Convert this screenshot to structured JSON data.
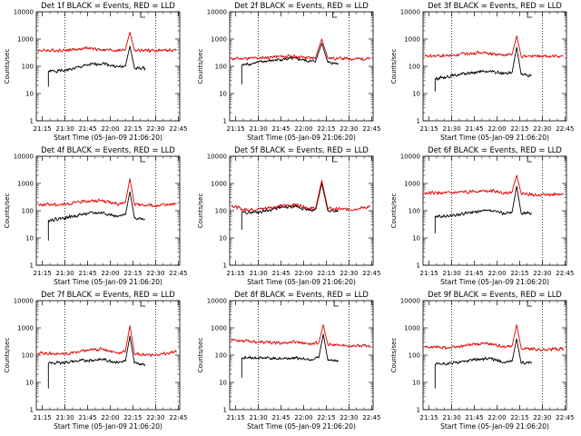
{
  "figure": {
    "x_ticks": [
      "21:15",
      "21:30",
      "21:45",
      "22:00",
      "22:15",
      "22:30",
      "22:45"
    ],
    "y_ticks": [
      "1",
      "10",
      "100",
      "1000",
      "10000"
    ],
    "ylabel": "Counts/sec",
    "xlabel": "Start Time (05-Jan-09 21:06:20)",
    "colors": {
      "events": "#000000",
      "lld": "#e00000",
      "axis": "#000000"
    }
  },
  "chart_data": [
    {
      "type": "line",
      "title": "Det 1f BLACK = Events, RED = LLD",
      "xlabel": "Start Time (05-Jan-09 21:06:20)",
      "ylabel": "Counts/sec",
      "y_scale": "log",
      "ylim": [
        1,
        10000
      ],
      "xlim": [
        "21:11",
        "22:46"
      ],
      "vertical_markers": [
        "21:30",
        "22:30"
      ],
      "peak_time": "22:13",
      "series": [
        {
          "key": "events",
          "color": "#000000",
          "points": [
            [
              "21:19",
              18
            ],
            [
              "21:19",
              65
            ],
            [
              "21:30",
              70
            ],
            [
              "21:45",
              110
            ],
            [
              "21:55",
              130
            ],
            [
              "22:05",
              95
            ],
            [
              "22:10",
              100
            ],
            [
              "22:13",
              550
            ],
            [
              "22:16",
              85
            ],
            [
              "22:23",
              85
            ]
          ]
        },
        {
          "key": "lld",
          "color": "#e00000",
          "points": [
            [
              "21:12",
              380
            ],
            [
              "21:30",
              390
            ],
            [
              "21:45",
              460
            ],
            [
              "21:55",
              410
            ],
            [
              "22:05",
              380
            ],
            [
              "22:10",
              420
            ],
            [
              "22:13",
              1800
            ],
            [
              "22:16",
              380
            ],
            [
              "22:30",
              380
            ],
            [
              "22:44",
              390
            ]
          ]
        }
      ]
    },
    {
      "type": "line",
      "title": "Det 2f BLACK = Events, RED = LLD",
      "xlabel": "Start Time (05-Jan-09 21:06:20)",
      "ylabel": "Counts/sec",
      "y_scale": "log",
      "ylim": [
        1,
        10000
      ],
      "xlim": [
        "21:11",
        "22:46"
      ],
      "vertical_markers": [
        "21:30",
        "22:30"
      ],
      "peak_time": "22:12",
      "series": [
        {
          "key": "events",
          "color": "#000000",
          "points": [
            [
              "21:19",
              22
            ],
            [
              "21:19",
              110
            ],
            [
              "21:30",
              140
            ],
            [
              "21:45",
              180
            ],
            [
              "21:55",
              190
            ],
            [
              "22:05",
              150
            ],
            [
              "22:08",
              160
            ],
            [
              "22:12",
              700
            ],
            [
              "22:16",
              140
            ],
            [
              "22:23",
              130
            ]
          ]
        },
        {
          "key": "lld",
          "color": "#e00000",
          "points": [
            [
              "21:12",
              190
            ],
            [
              "21:30",
              200
            ],
            [
              "21:45",
              230
            ],
            [
              "21:55",
              230
            ],
            [
              "22:05",
              200
            ],
            [
              "22:08",
              220
            ],
            [
              "22:12",
              1000
            ],
            [
              "22:16",
              200
            ],
            [
              "22:30",
              190
            ],
            [
              "22:44",
              190
            ]
          ]
        }
      ]
    },
    {
      "type": "line",
      "title": "Det 3f BLACK = Events, RED = LLD",
      "xlabel": "Start Time (05-Jan-09 21:06:20)",
      "ylabel": "Counts/sec",
      "y_scale": "log",
      "ylim": [
        1,
        10000
      ],
      "xlim": [
        "21:11",
        "22:46"
      ],
      "vertical_markers": [
        "21:30",
        "22:30"
      ],
      "peak_time": "22:13",
      "series": [
        {
          "key": "events",
          "color": "#000000",
          "points": [
            [
              "21:19",
              12
            ],
            [
              "21:19",
              35
            ],
            [
              "21:30",
              45
            ],
            [
              "21:45",
              60
            ],
            [
              "21:55",
              65
            ],
            [
              "22:05",
              55
            ],
            [
              "22:10",
              60
            ],
            [
              "22:13",
              500
            ],
            [
              "22:16",
              50
            ],
            [
              "22:23",
              45
            ]
          ]
        },
        {
          "key": "lld",
          "color": "#e00000",
          "points": [
            [
              "21:12",
              230
            ],
            [
              "21:30",
              250
            ],
            [
              "21:45",
              320
            ],
            [
              "21:55",
              300
            ],
            [
              "22:05",
              250
            ],
            [
              "22:10",
              280
            ],
            [
              "22:13",
              1300
            ],
            [
              "22:16",
              240
            ],
            [
              "22:30",
              230
            ],
            [
              "22:44",
              230
            ]
          ]
        }
      ]
    },
    {
      "type": "line",
      "title": "Det 4f BLACK = Events, RED = LLD",
      "xlabel": "Start Time (05-Jan-09 21:06:20)",
      "ylabel": "Counts/sec",
      "y_scale": "log",
      "ylim": [
        1,
        10000
      ],
      "xlim": [
        "21:11",
        "22:46"
      ],
      "vertical_markers": [
        "21:30",
        "22:30"
      ],
      "peak_time": "22:13",
      "series": [
        {
          "key": "events",
          "color": "#000000",
          "points": [
            [
              "21:19",
              8
            ],
            [
              "21:19",
              45
            ],
            [
              "21:30",
              55
            ],
            [
              "21:45",
              80
            ],
            [
              "21:55",
              85
            ],
            [
              "22:05",
              60
            ],
            [
              "22:10",
              70
            ],
            [
              "22:13",
              500
            ],
            [
              "22:16",
              55
            ],
            [
              "22:23",
              50
            ]
          ]
        },
        {
          "key": "lld",
          "color": "#e00000",
          "points": [
            [
              "21:12",
              170
            ],
            [
              "21:30",
              170
            ],
            [
              "21:45",
              230
            ],
            [
              "21:55",
              240
            ],
            [
              "22:05",
              170
            ],
            [
              "22:10",
              200
            ],
            [
              "22:13",
              1500
            ],
            [
              "22:16",
              170
            ],
            [
              "22:30",
              150
            ],
            [
              "22:44",
              180
            ]
          ]
        }
      ]
    },
    {
      "type": "line",
      "title": "Det 5f BLACK = Events, RED = LLD",
      "xlabel": "Start Time (05-Jan-09 21:06:20)",
      "ylabel": "Counts/sec",
      "y_scale": "log",
      "ylim": [
        1,
        10000
      ],
      "xlim": [
        "21:11",
        "22:46"
      ],
      "vertical_markers": [
        "21:30",
        "22:30"
      ],
      "peak_time": "22:12",
      "series": [
        {
          "key": "events",
          "color": "#000000",
          "points": [
            [
              "21:19",
              20
            ],
            [
              "21:19",
              85
            ],
            [
              "21:30",
              90
            ],
            [
              "21:45",
              130
            ],
            [
              "21:55",
              140
            ],
            [
              "22:05",
              100
            ],
            [
              "22:08",
              110
            ],
            [
              "22:12",
              1000
            ],
            [
              "22:16",
              100
            ],
            [
              "22:23",
              100
            ]
          ]
        },
        {
          "key": "lld",
          "color": "#e00000",
          "points": [
            [
              "21:12",
              160
            ],
            [
              "21:20",
              110
            ],
            [
              "21:30",
              115
            ],
            [
              "21:45",
              150
            ],
            [
              "21:55",
              170
            ],
            [
              "22:05",
              120
            ],
            [
              "22:08",
              130
            ],
            [
              "22:12",
              1300
            ],
            [
              "22:16",
              120
            ],
            [
              "22:30",
              110
            ],
            [
              "22:44",
              140
            ]
          ]
        }
      ]
    },
    {
      "type": "line",
      "title": "Det 6f BLACK = Events, RED = LLD",
      "xlabel": "Start Time (05-Jan-09 21:06:20)",
      "ylabel": "Counts/sec",
      "y_scale": "log",
      "ylim": [
        1,
        10000
      ],
      "xlim": [
        "21:11",
        "22:46"
      ],
      "vertical_markers": [
        "21:30",
        "22:30"
      ],
      "peak_time": "22:13",
      "series": [
        {
          "key": "events",
          "color": "#000000",
          "points": [
            [
              "21:19",
              15
            ],
            [
              "21:19",
              60
            ],
            [
              "21:30",
              65
            ],
            [
              "21:45",
              90
            ],
            [
              "21:55",
              100
            ],
            [
              "22:05",
              80
            ],
            [
              "22:10",
              90
            ],
            [
              "22:13",
              800
            ],
            [
              "22:16",
              80
            ],
            [
              "22:23",
              80
            ]
          ]
        },
        {
          "key": "lld",
          "color": "#e00000",
          "points": [
            [
              "21:12",
              450
            ],
            [
              "21:30",
              440
            ],
            [
              "21:45",
              520
            ],
            [
              "21:55",
              550
            ],
            [
              "22:05",
              450
            ],
            [
              "22:10",
              500
            ],
            [
              "22:13",
              2000
            ],
            [
              "22:16",
              420
            ],
            [
              "22:30",
              380
            ],
            [
              "22:44",
              400
            ]
          ]
        }
      ]
    },
    {
      "type": "line",
      "title": "Det 7f BLACK = Events, RED = LLD",
      "xlabel": "Start Time (05-Jan-09 21:06:20)",
      "ylabel": "Counts/sec",
      "y_scale": "log",
      "ylim": [
        1,
        10000
      ],
      "xlim": [
        "21:11",
        "22:46"
      ],
      "vertical_markers": [
        "21:30",
        "22:30"
      ],
      "peak_time": "22:13",
      "series": [
        {
          "key": "events",
          "color": "#000000",
          "points": [
            [
              "21:19",
              6
            ],
            [
              "21:19",
              50
            ],
            [
              "21:30",
              55
            ],
            [
              "21:45",
              65
            ],
            [
              "21:55",
              70
            ],
            [
              "22:05",
              55
            ],
            [
              "22:10",
              60
            ],
            [
              "22:13",
              500
            ],
            [
              "22:16",
              50
            ],
            [
              "22:23",
              45
            ]
          ]
        },
        {
          "key": "lld",
          "color": "#e00000",
          "points": [
            [
              "21:12",
              120
            ],
            [
              "21:30",
              110
            ],
            [
              "21:45",
              150
            ],
            [
              "21:55",
              170
            ],
            [
              "22:05",
              120
            ],
            [
              "22:10",
              140
            ],
            [
              "22:13",
              1200
            ],
            [
              "22:16",
              110
            ],
            [
              "22:30",
              100
            ],
            [
              "22:44",
              130
            ]
          ]
        }
      ]
    },
    {
      "type": "line",
      "title": "Det 8f BLACK = Events, RED = LLD",
      "xlabel": "Start Time (05-Jan-09 21:06:20)",
      "ylabel": "Counts/sec",
      "y_scale": "log",
      "ylim": [
        1,
        10000
      ],
      "xlim": [
        "21:11",
        "22:46"
      ],
      "vertical_markers": [
        "21:30",
        "22:30"
      ],
      "peak_time": "22:13",
      "series": [
        {
          "key": "events",
          "color": "#000000",
          "points": [
            [
              "21:19",
              15
            ],
            [
              "21:19",
              80
            ],
            [
              "21:30",
              80
            ],
            [
              "21:45",
              75
            ],
            [
              "21:55",
              80
            ],
            [
              "22:05",
              70
            ],
            [
              "22:10",
              80
            ],
            [
              "22:13",
              600
            ],
            [
              "22:16",
              65
            ],
            [
              "22:23",
              60
            ]
          ]
        },
        {
          "key": "lld",
          "color": "#e00000",
          "points": [
            [
              "21:12",
              380
            ],
            [
              "21:30",
              300
            ],
            [
              "21:45",
              280
            ],
            [
              "21:55",
              310
            ],
            [
              "22:05",
              260
            ],
            [
              "22:10",
              290
            ],
            [
              "22:13",
              1300
            ],
            [
              "22:16",
              240
            ],
            [
              "22:30",
              220
            ],
            [
              "22:44",
              220
            ]
          ]
        }
      ]
    },
    {
      "type": "line",
      "title": "Det 9f BLACK = Events, RED = LLD",
      "xlabel": "Start Time (05-Jan-09 21:06:20)",
      "ylabel": "Counts/sec",
      "y_scale": "log",
      "ylim": [
        1,
        10000
      ],
      "xlim": [
        "21:11",
        "22:46"
      ],
      "vertical_markers": [
        "21:30",
        "22:30"
      ],
      "peak_time": "22:13",
      "series": [
        {
          "key": "events",
          "color": "#000000",
          "points": [
            [
              "21:19",
              6
            ],
            [
              "21:19",
              45
            ],
            [
              "21:30",
              50
            ],
            [
              "21:45",
              70
            ],
            [
              "21:55",
              75
            ],
            [
              "22:05",
              55
            ],
            [
              "22:10",
              60
            ],
            [
              "22:13",
              400
            ],
            [
              "22:16",
              50
            ],
            [
              "22:23",
              55
            ]
          ]
        },
        {
          "key": "lld",
          "color": "#e00000",
          "points": [
            [
              "21:12",
              200
            ],
            [
              "21:30",
              190
            ],
            [
              "21:45",
              250
            ],
            [
              "21:55",
              270
            ],
            [
              "22:05",
              190
            ],
            [
              "22:10",
              220
            ],
            [
              "22:13",
              1300
            ],
            [
              "22:16",
              180
            ],
            [
              "22:30",
              160
            ],
            [
              "22:44",
              170
            ]
          ]
        }
      ]
    }
  ]
}
